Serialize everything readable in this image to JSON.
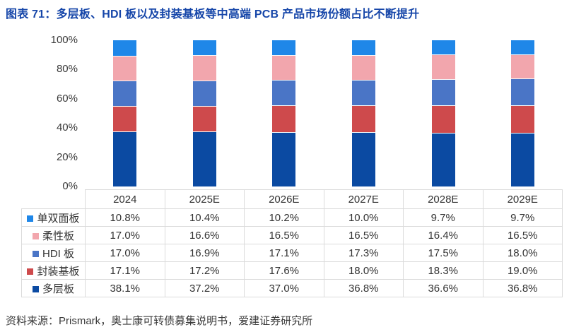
{
  "page": {
    "title": "图表 71：多层板、HDI 板以及封装基板等中高端 PCB 产品市场份额占比不断提升",
    "source": "资料来源：Prismark，奥士康可转债募集说明书，爱建证券研究所",
    "title_color": "#1646A9",
    "text_color": "#3A3A3A",
    "table_border_color": "#DBDBDB"
  },
  "chart_data": {
    "type": "bar",
    "stacked": true,
    "normalized_to_100_percent": true,
    "title": "图表 71：多层板、HDI 板以及封装基板等中高端 PCB 产品市场份额占比不断提升",
    "xlabel": "",
    "ylabel": "",
    "categories": [
      "2024",
      "2025E",
      "2026E",
      "2027E",
      "2028E",
      "2029E"
    ],
    "y_ticks": [
      "0%",
      "20%",
      "40%",
      "60%",
      "80%",
      "100%"
    ],
    "ylim": [
      0,
      100
    ],
    "grid": false,
    "legend_position": "left column of data table below chart",
    "stack_order_bottom_to_top": [
      "多层板",
      "封装基板",
      "HDI 板",
      "柔性板",
      "单双面板"
    ],
    "series": [
      {
        "name": "单双面板",
        "color": "#1F87E8",
        "values": [
          10.8,
          10.4,
          10.2,
          10.0,
          9.7,
          9.7
        ]
      },
      {
        "name": "柔性板",
        "color": "#F2A6AD",
        "values": [
          17.0,
          16.6,
          16.5,
          16.5,
          16.4,
          16.5
        ]
      },
      {
        "name": "HDI 板",
        "color": "#4A75C6",
        "values": [
          17.0,
          16.9,
          17.1,
          17.3,
          17.5,
          18.0
        ]
      },
      {
        "name": "封装基板",
        "color": "#CE4A4C",
        "values": [
          17.1,
          17.2,
          17.6,
          18.0,
          18.3,
          19.0
        ]
      },
      {
        "name": "多层板",
        "color": "#0B4AA2",
        "values": [
          38.1,
          37.2,
          37.0,
          36.8,
          36.6,
          36.8
        ]
      }
    ]
  }
}
